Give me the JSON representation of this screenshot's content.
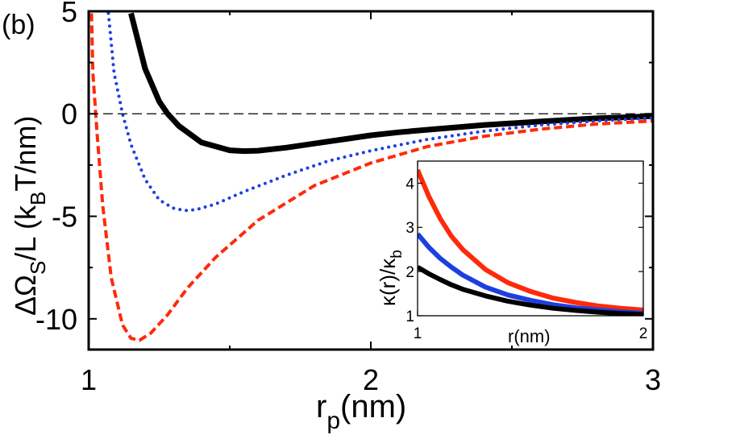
{
  "panel_label": "(b)",
  "chart_data": [
    {
      "id": "main",
      "type": "line",
      "title": "",
      "xlabel": {
        "main": "r",
        "sub": "p",
        "rest": "(nm)"
      },
      "ylabel": {
        "p1": "ΔΩ",
        "sub1": "S",
        "p2": "/L (k",
        "sub2": "B",
        "p3": "T/nm)"
      },
      "xlim": [
        1,
        3
      ],
      "ylim": [
        -11.5,
        5
      ],
      "xticks": [
        1,
        2,
        3
      ],
      "xtick_labels": [
        "1",
        "2",
        "3"
      ],
      "yticks": [
        5,
        0,
        -5,
        -10
      ],
      "ytick_labels": [
        "5",
        "0",
        "-5",
        "-10"
      ],
      "reference_line": {
        "y": 0,
        "style": "dashed",
        "color": "#000000"
      },
      "series": [
        {
          "name": "black solid",
          "color": "#000000",
          "style": "solid",
          "x": [
            1.15,
            1.2,
            1.25,
            1.28,
            1.32,
            1.4,
            1.5,
            1.55,
            1.6,
            1.7,
            1.8,
            1.9,
            2.0,
            2.1,
            2.2,
            2.4,
            2.6,
            2.8,
            3.0
          ],
          "y": [
            4.9,
            2.2,
            0.6,
            0.0,
            -0.6,
            -1.4,
            -1.78,
            -1.82,
            -1.8,
            -1.65,
            -1.45,
            -1.25,
            -1.05,
            -0.9,
            -0.78,
            -0.55,
            -0.38,
            -0.22,
            -0.12
          ]
        },
        {
          "name": "blue dotted",
          "color": "#1d3fe0",
          "style": "dotted",
          "x": [
            1.07,
            1.09,
            1.12,
            1.15,
            1.2,
            1.25,
            1.3,
            1.34,
            1.38,
            1.45,
            1.55,
            1.7,
            1.85,
            2.0,
            2.2,
            2.4,
            2.6,
            2.8,
            3.0
          ],
          "y": [
            4.9,
            2.0,
            0.0,
            -1.5,
            -3.2,
            -4.2,
            -4.6,
            -4.72,
            -4.68,
            -4.4,
            -3.8,
            -3.0,
            -2.3,
            -1.8,
            -1.25,
            -0.85,
            -0.55,
            -0.35,
            -0.2
          ]
        },
        {
          "name": "red dashed",
          "color": "#ff2a0a",
          "style": "dashed",
          "x": [
            1.01,
            1.015,
            1.03,
            1.05,
            1.08,
            1.12,
            1.15,
            1.18,
            1.22,
            1.28,
            1.35,
            1.45,
            1.6,
            1.8,
            2.0,
            2.2,
            2.4,
            2.6,
            2.8,
            3.0
          ],
          "y": [
            4.9,
            2.0,
            -1.0,
            -4.5,
            -8.0,
            -10.3,
            -10.95,
            -11.05,
            -10.7,
            -9.8,
            -8.5,
            -7.0,
            -5.2,
            -3.5,
            -2.4,
            -1.6,
            -1.1,
            -0.75,
            -0.5,
            -0.35
          ]
        }
      ]
    },
    {
      "id": "inset",
      "type": "line",
      "title": "",
      "xlabel": "r(nm)",
      "ylabel": {
        "p1": "κ(r)/κ",
        "sub1": "b"
      },
      "xlim": [
        1,
        2
      ],
      "ylim": [
        1,
        4.5
      ],
      "xticks": [
        1,
        2
      ],
      "xtick_labels": [
        "1",
        "2"
      ],
      "yticks": [
        1,
        2,
        3,
        4
      ],
      "ytick_labels": [
        "1",
        "2",
        "3",
        "4"
      ],
      "series": [
        {
          "name": "red",
          "color": "#ff2a0a",
          "style": "solid",
          "x": [
            1.0,
            1.05,
            1.1,
            1.15,
            1.2,
            1.3,
            1.4,
            1.5,
            1.6,
            1.7,
            1.8,
            1.9,
            2.0
          ],
          "y": [
            4.3,
            3.7,
            3.2,
            2.8,
            2.5,
            2.05,
            1.75,
            1.55,
            1.4,
            1.3,
            1.22,
            1.17,
            1.13
          ]
        },
        {
          "name": "blue",
          "color": "#1d3fe0",
          "style": "solid",
          "x": [
            1.0,
            1.05,
            1.1,
            1.15,
            1.2,
            1.3,
            1.4,
            1.5,
            1.6,
            1.7,
            1.8,
            1.9,
            2.0
          ],
          "y": [
            2.85,
            2.55,
            2.3,
            2.1,
            1.92,
            1.65,
            1.47,
            1.35,
            1.25,
            1.18,
            1.13,
            1.09,
            1.06
          ]
        },
        {
          "name": "black",
          "color": "#000000",
          "style": "solid",
          "x": [
            1.0,
            1.05,
            1.1,
            1.15,
            1.2,
            1.3,
            1.4,
            1.5,
            1.6,
            1.7,
            1.8,
            1.9,
            2.0
          ],
          "y": [
            2.1,
            1.95,
            1.82,
            1.7,
            1.6,
            1.45,
            1.33,
            1.24,
            1.17,
            1.12,
            1.08,
            1.05,
            1.03
          ]
        }
      ]
    }
  ]
}
